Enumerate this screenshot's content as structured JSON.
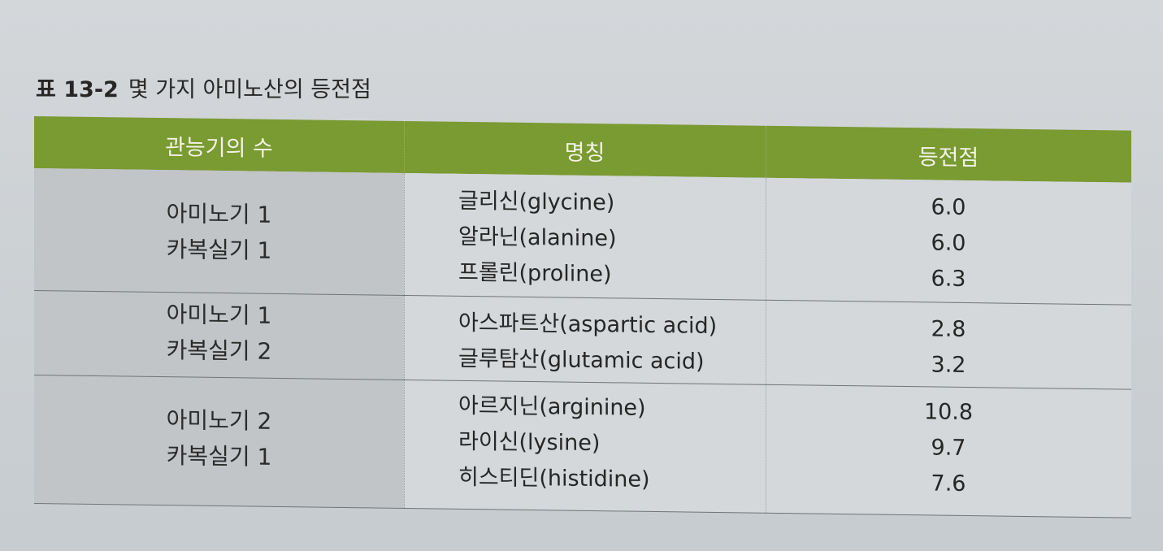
{
  "caption": {
    "label": "표 13-2",
    "title": "몇 가지 아미노산의 등전점"
  },
  "table": {
    "headers": [
      "관능기의 수",
      "명칭",
      "등전점"
    ],
    "groups": [
      {
        "functional_groups": [
          "아미노기 1",
          "카복실기 1"
        ],
        "names": [
          "글리신(glycine)",
          "알라닌(alanine)",
          "프롤린(proline)"
        ],
        "isoelectric_points": [
          "6.0",
          "6.0",
          "6.3"
        ]
      },
      {
        "functional_groups": [
          "아미노기 1",
          "카복실기 2"
        ],
        "names": [
          "아스파트산(aspartic acid)",
          "글루탐산(glutamic acid)"
        ],
        "isoelectric_points": [
          "2.8",
          "3.2"
        ]
      },
      {
        "functional_groups": [
          "아미노기 2",
          "카복실기 1"
        ],
        "names": [
          "아르지닌(arginine)",
          "라이신(lysine)",
          "히스티딘(histidine)"
        ],
        "isoelectric_points": [
          "10.8",
          "9.7",
          "7.6"
        ]
      }
    ]
  },
  "colors": {
    "header_bg": "#7a9a32",
    "header_text": "#f1f4e6",
    "first_column_bg": "#c1c5c8",
    "page_bg": "#d4d8db"
  }
}
